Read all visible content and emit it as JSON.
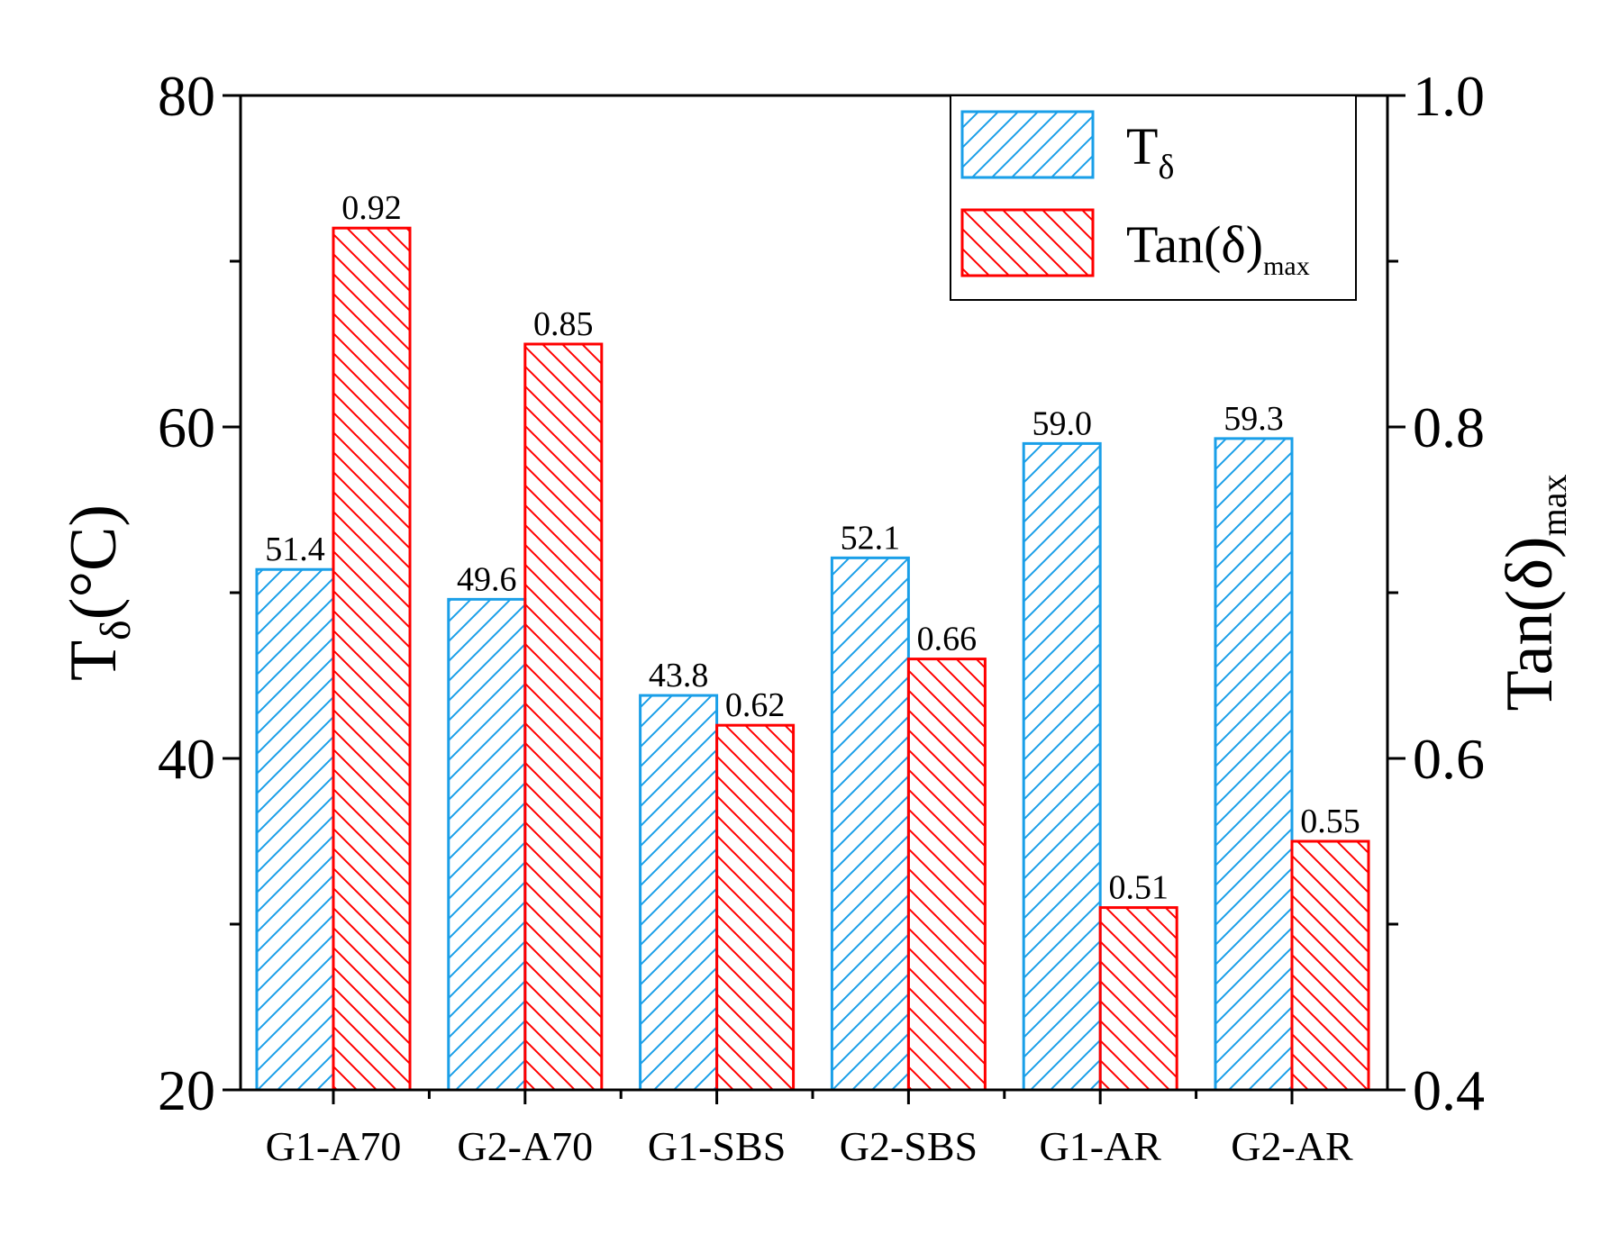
{
  "chart_data": {
    "type": "bar",
    "categories": [
      "G1-A70",
      "G2-A70",
      "G1-SBS",
      "G2-SBS",
      "G1-AR",
      "G2-AR"
    ],
    "series": [
      {
        "name": "Tδ",
        "axis": "left",
        "color": "#1a9fe8",
        "values": [
          51.4,
          49.6,
          43.8,
          52.1,
          59.0,
          59.3
        ],
        "labels": [
          "51.4",
          "49.6",
          "43.8",
          "52.1",
          "59.0",
          "59.3"
        ]
      },
      {
        "name": "Tan(δ)max",
        "axis": "right",
        "color": "#ff0000",
        "values": [
          0.92,
          0.85,
          0.62,
          0.66,
          0.51,
          0.55
        ],
        "labels": [
          "0.92",
          "0.85",
          "0.62",
          "0.66",
          "0.51",
          "0.55"
        ]
      }
    ],
    "left_axis": {
      "label_main": "T",
      "label_sub": "δ",
      "label_rest": "(°C)",
      "ylim": [
        20,
        80
      ],
      "ticks": [
        "20",
        "40",
        "60",
        "80"
      ]
    },
    "right_axis": {
      "label_main": "Tan(δ)",
      "label_sub": "max",
      "ylim": [
        0.4,
        1.0
      ],
      "ticks": [
        "0.4",
        "0.6",
        "0.8",
        "1.0"
      ]
    },
    "legend": {
      "position": "top-right",
      "entries": [
        {
          "main": "T",
          "sub": "δ"
        },
        {
          "main": "Tan(δ)",
          "sub": "max"
        }
      ]
    }
  }
}
